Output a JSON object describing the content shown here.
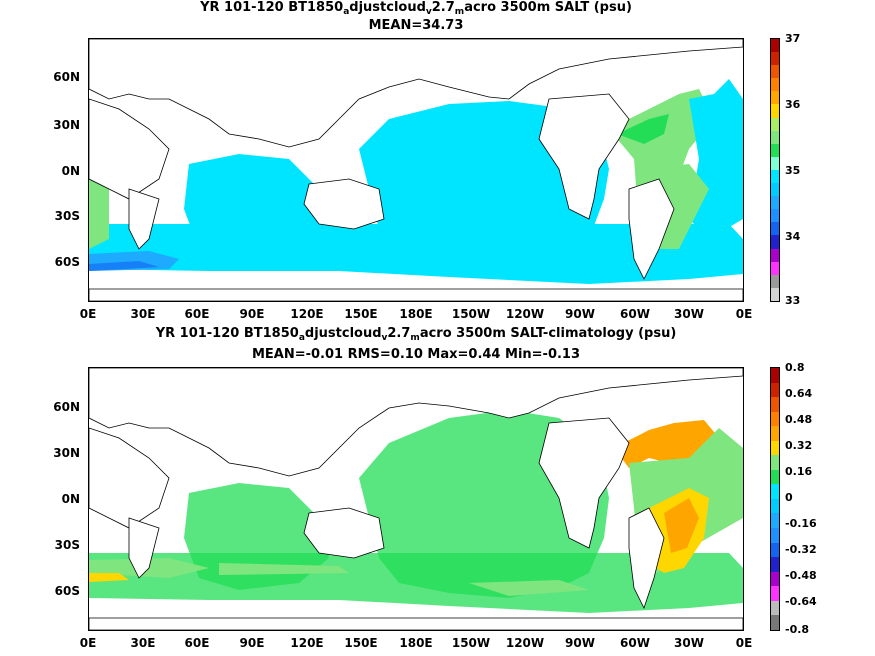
{
  "panel1": {
    "title_pre": "YR 101-120 BT1850",
    "title_sub1": "a",
    "title_mid": "djustcloud",
    "title_sub2": "v",
    "title_mid2": "2.7",
    "title_sub3": "m",
    "title_post": "acro 3500m SALT (psu)",
    "stats": "MEAN=34.73",
    "lat_labels": [
      "60N",
      "30N",
      "0N",
      "30S",
      "60S"
    ],
    "lon_labels": [
      "0E",
      "30E",
      "60E",
      "90E",
      "120E",
      "150E",
      "180E",
      "150W",
      "120W",
      "90W",
      "60W",
      "30W",
      "0E"
    ],
    "colorbar_ticks": [
      "37",
      "36",
      "35",
      "34",
      "33"
    ]
  },
  "panel2": {
    "title_pre": "YR 101-120 BT1850",
    "title_sub1": "a",
    "title_mid": "djustcloud",
    "title_sub2": "v",
    "title_mid2": "2.7",
    "title_sub3": "m",
    "title_post": "acro 3500m SALT-climatology (psu)",
    "stats": "MEAN=-0.01   RMS=0.10   Max=0.44   Min=-0.13",
    "lat_labels": [
      "60N",
      "30N",
      "0N",
      "30S",
      "60S"
    ],
    "lon_labels": [
      "0E",
      "30E",
      "60E",
      "90E",
      "120E",
      "150E",
      "180E",
      "150W",
      "120W",
      "90W",
      "60W",
      "30W",
      "0E"
    ],
    "colorbar_ticks": [
      "0.8",
      "0.64",
      "0.48",
      "0.32",
      "0.16",
      "0",
      "-0.16",
      "-0.32",
      "-0.48",
      "-0.64",
      "-0.8"
    ]
  },
  "colors": {
    "cyan": "#00e5ff",
    "green_light": "#7fe57f",
    "green": "#22dd55",
    "yellow": "#ffd700",
    "orange": "#ffa500",
    "sky": "#1eaaff",
    "blue": "#1464f0"
  },
  "colorbar1": [
    "#d3d3d3",
    "#9a9a9a",
    "#ff33ff",
    "#aa00cc",
    "#2222cc",
    "#1464f0",
    "#1e90ff",
    "#1eaaff",
    "#00ccff",
    "#00e5ff",
    "#7fffd4",
    "#22dd55",
    "#7fe57f",
    "#aaee66",
    "#ffd700",
    "#ffa500",
    "#ff7f00",
    "#ee5500",
    "#cc2200",
    "#aa0000"
  ],
  "colorbar2": [
    "#777777",
    "#bbbbbb",
    "#ff33ff",
    "#aa00cc",
    "#2222cc",
    "#1464f0",
    "#1e90ff",
    "#1eaaff",
    "#00ccff",
    "#00e5ff",
    "#22dd55",
    "#7fe57f",
    "#ffd700",
    "#ffa500",
    "#ff7f00",
    "#ee5500",
    "#cc2200",
    "#aa0000"
  ]
}
